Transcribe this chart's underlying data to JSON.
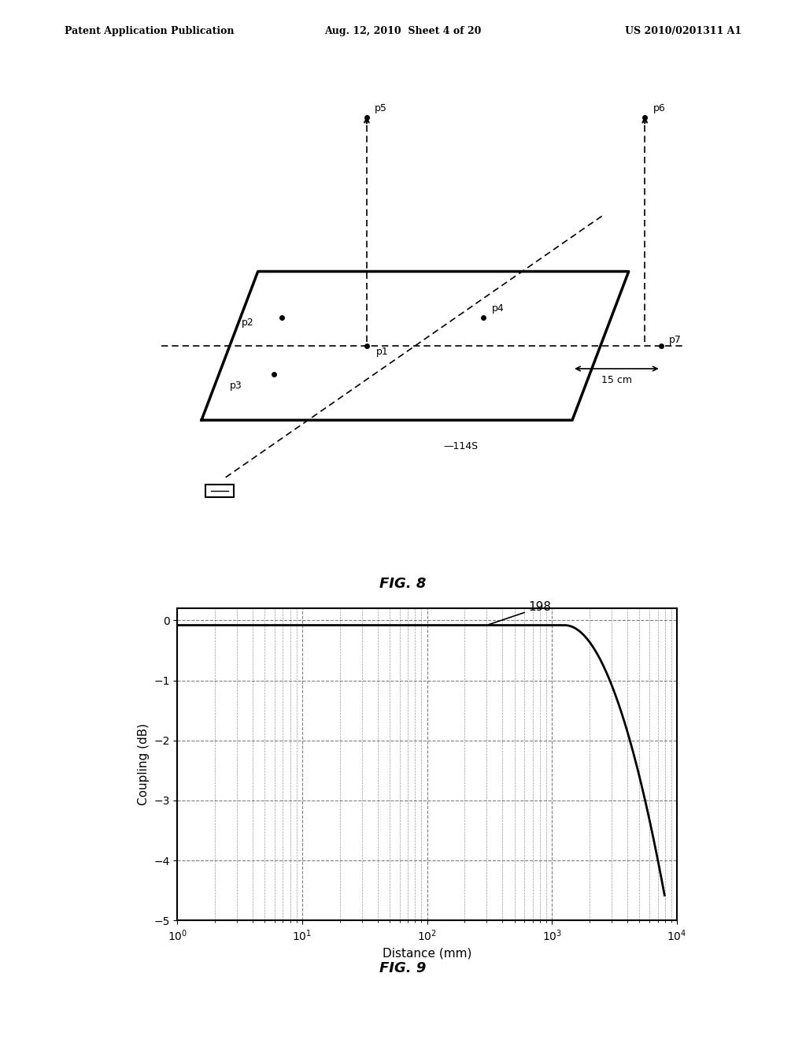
{
  "header_left": "Patent Application Publication",
  "header_center": "Aug. 12, 2010  Sheet 4 of 20",
  "header_right": "US 2010/0201311 A1",
  "fig8_title": "FIG. 8",
  "fig9_title": "FIG. 9",
  "fig9_xlabel": "Distance (mm)",
  "fig9_ylabel": "Coupling (dB)",
  "fig9_annotation": "198",
  "fig9_yticks": [
    0,
    -1,
    -2,
    -3,
    -4,
    -5
  ],
  "fig9_xlim": [
    1,
    10000
  ],
  "fig9_ylim": [
    -5,
    0.2
  ],
  "background_color": "#ffffff",
  "line_color": "#000000"
}
